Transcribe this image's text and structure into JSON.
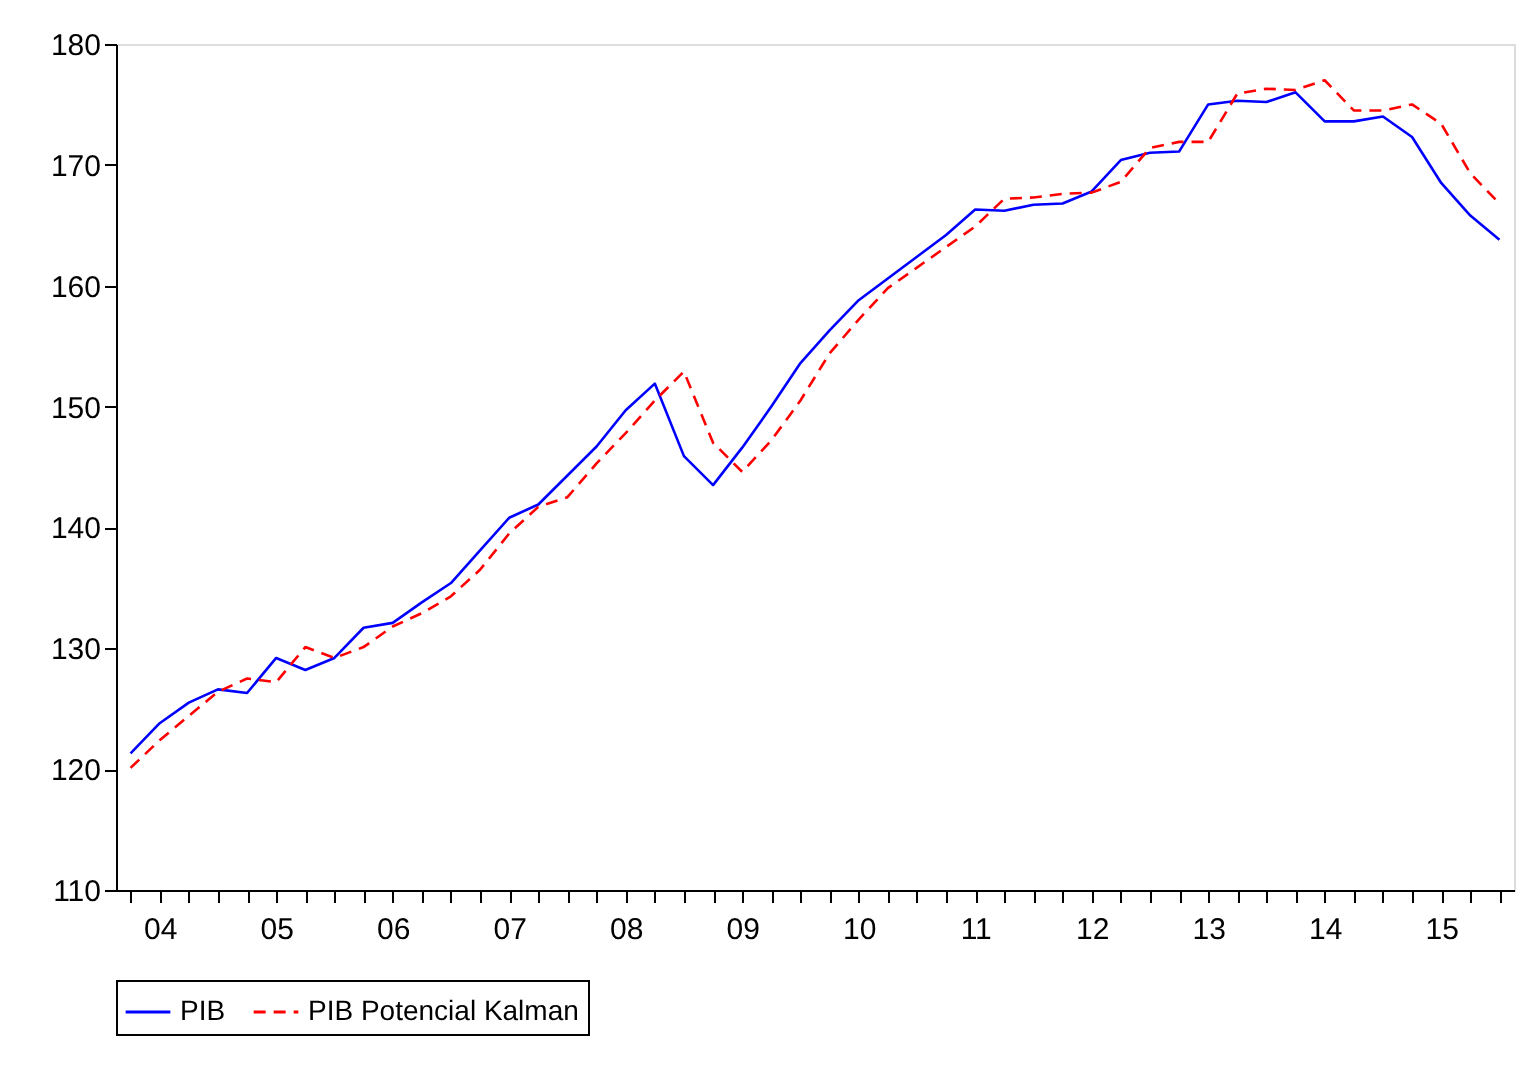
{
  "chart_data": {
    "type": "line",
    "categories": [
      null,
      "04",
      null,
      null,
      null,
      "05",
      null,
      null,
      null,
      "06",
      null,
      null,
      null,
      "07",
      null,
      null,
      null,
      "08",
      null,
      null,
      null,
      "09",
      null,
      null,
      null,
      "10",
      null,
      null,
      null,
      "11",
      null,
      null,
      null,
      "12",
      null,
      null,
      null,
      "13",
      null,
      null,
      null,
      "14",
      null,
      null,
      null,
      "15",
      null,
      null
    ],
    "series": [
      {
        "name": "PIB",
        "color": "#0000ff",
        "line_style": "solid",
        "values": [
          121.3,
          123.8,
          125.5,
          126.6,
          126.3,
          129.2,
          128.2,
          129.2,
          131.7,
          132.1,
          133.8,
          135.4,
          138.1,
          140.8,
          141.9,
          144.3,
          146.7,
          149.7,
          151.9,
          145.9,
          143.5,
          146.6,
          150.0,
          153.6,
          156.3,
          158.8,
          160.6,
          162.4,
          164.2,
          166.3,
          166.2,
          166.7,
          166.8,
          167.8,
          170.4,
          171.0,
          171.1,
          175.0,
          175.3,
          175.2,
          176.0,
          173.6,
          173.6,
          174.0,
          172.3,
          168.5,
          165.8,
          163.8
        ]
      },
      {
        "name": "PIB Potencial Kalman",
        "color": "#ff0000",
        "line_style": "dashed",
        "values": [
          120.1,
          122.4,
          124.4,
          126.4,
          127.5,
          127.2,
          130.1,
          129.2,
          130.1,
          131.8,
          132.9,
          134.3,
          136.5,
          139.5,
          141.7,
          142.5,
          145.3,
          147.8,
          150.5,
          152.9,
          147.0,
          144.6,
          147.2,
          150.5,
          154.4,
          157.2,
          159.8,
          161.5,
          163.2,
          164.9,
          167.2,
          167.3,
          167.6,
          167.7,
          168.6,
          171.4,
          171.9,
          171.9,
          175.9,
          176.3,
          176.2,
          177.0,
          174.5,
          174.5,
          175.0,
          173.4,
          169.3,
          166.8
        ]
      }
    ],
    "ylim": [
      110,
      180
    ],
    "yticks": [
      110,
      120,
      130,
      140,
      150,
      160,
      170,
      180
    ],
    "grid": false,
    "legend": "bottom",
    "marker": "none"
  }
}
